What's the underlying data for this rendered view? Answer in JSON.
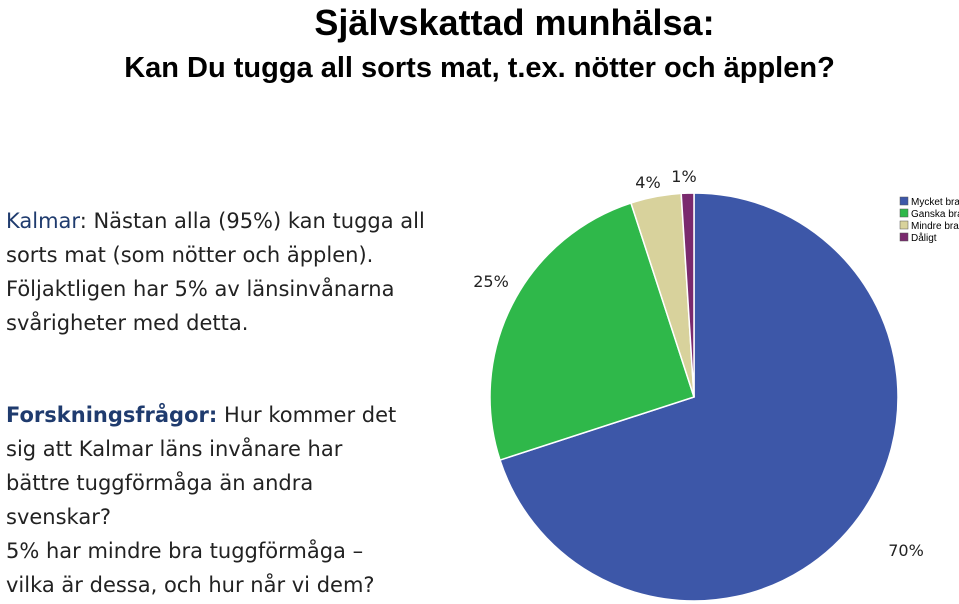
{
  "title_line1": "Självskattad munhälsa:",
  "title_line2": "Kan Du tugga all sorts mat, t.ex. nötter och äpplen?",
  "kalmar": {
    "label": "Kalmar",
    "text": ": Nästan alla (95%) kan tugga all sorts mat (som nötter och äpplen). Följaktligen har 5% av länsinvånarna svårigheter med detta."
  },
  "research": {
    "label": "Forskningsfrågor:",
    "text": " Hur kommer det sig att Kalmar läns invånare har bättre tuggförmåga än andra svenskar?",
    "text2": "5% har mindre bra tuggförmåga – vilka är dessa, och hur når vi dem?"
  },
  "chart_data": {
    "type": "pie",
    "categories": [
      "Mycket bra",
      "Ganska bra",
      "Mindre bra",
      "Dåligt"
    ],
    "values": [
      70,
      25,
      4,
      1
    ],
    "labels": [
      "70%",
      "25%",
      "4%",
      "1%"
    ],
    "colors": [
      "#3d57a8",
      "#2fb84a",
      "#d8d29c",
      "#7a2a6e"
    ],
    "legend_position": "top-right"
  }
}
